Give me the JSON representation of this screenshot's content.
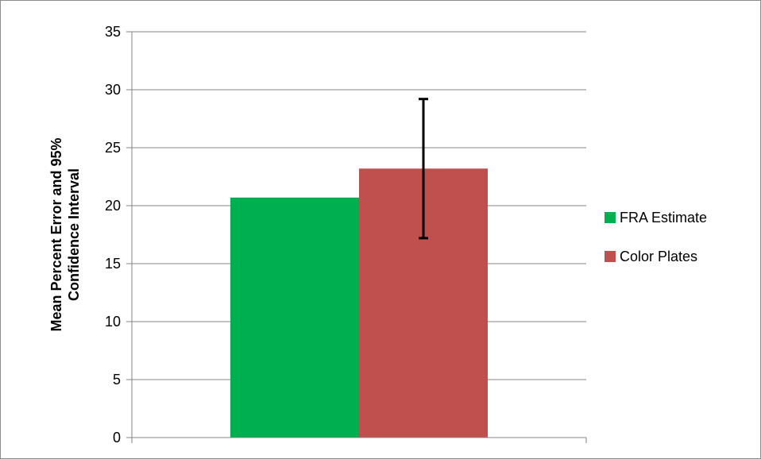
{
  "chart_data": {
    "type": "bar",
    "title": "",
    "xlabel": "",
    "ylabel": "Mean Percent  Error and 95% Confidence Interval",
    "ylabel_lines": [
      "Mean Percent  Error and 95%",
      "Confidence Interval"
    ],
    "ylim": [
      0,
      35
    ],
    "yticks": [
      0,
      5,
      10,
      15,
      20,
      25,
      30,
      35
    ],
    "grid": true,
    "legend_position": "right",
    "categories": [
      ""
    ],
    "series": [
      {
        "name": "FRA Estimate",
        "values": [
          20.7
        ],
        "color": "#00b050",
        "error": null
      },
      {
        "name": "Color Plates",
        "values": [
          23.2
        ],
        "color": "#c0504d",
        "error": [
          17.2,
          29.2
        ]
      }
    ]
  }
}
